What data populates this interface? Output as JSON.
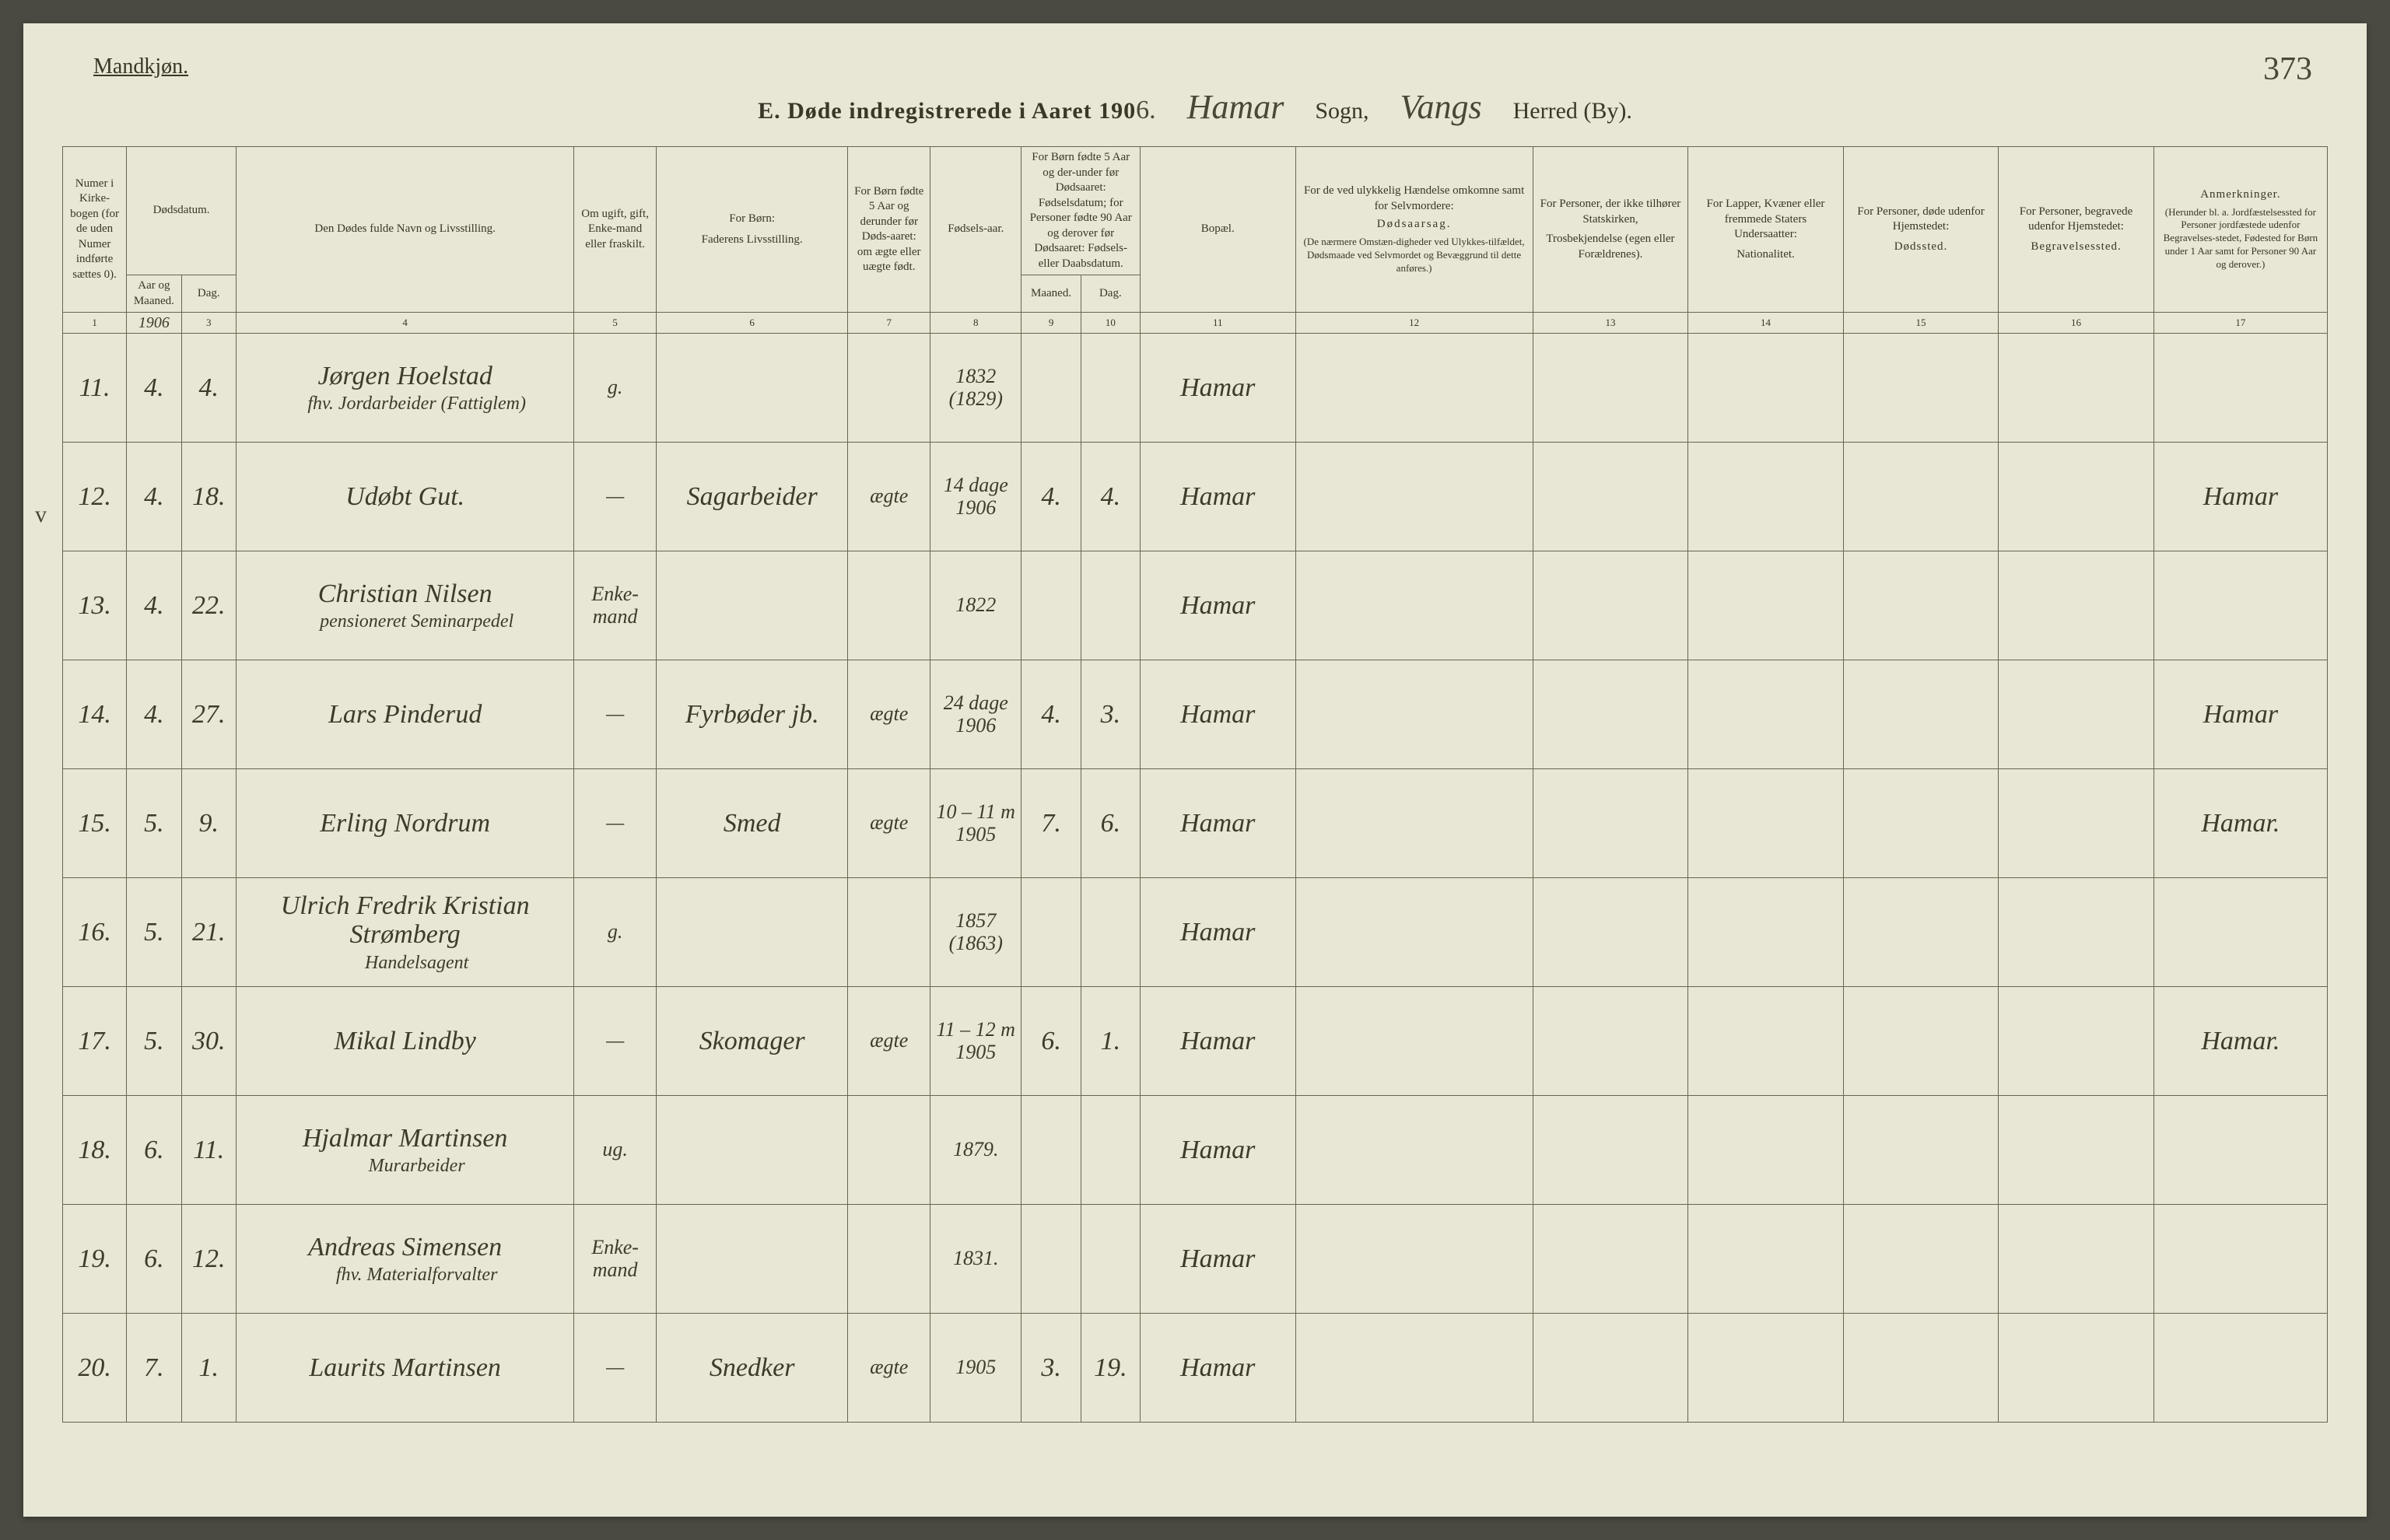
{
  "page_number": "373",
  "gender_label": "Mandkjøn.",
  "title_prefix": "E.  Døde indregistrerede i Aaret 190",
  "year_digit": "6.",
  "sogn_value": "Hamar",
  "sogn_label": "Sogn,",
  "herred_value": "Vangs",
  "herred_label": "Herred (By).",
  "margin_mark": "v",
  "headers": {
    "c1": "Numer i Kirke-bogen (for de uden Numer indførte sættes 0).",
    "c2_top": "Dødsdatum.",
    "c2": "Aar og Maaned.",
    "c3": "Dag.",
    "c4": "Den Dødes fulde Navn og Livsstilling.",
    "c5": "Om ugift, gift, Enke-mand eller fraskilt.",
    "c6_top": "For Børn:",
    "c6": "Faderens Livsstilling.",
    "c7": "For Børn fødte 5 Aar og derunder før Døds-aaret: om ægte eller uægte født.",
    "c8": "Fødsels-aar.",
    "c9_10_top": "For Børn fødte 5 Aar og der-under før Dødsaaret: Fødselsdatum; for Personer fødte 90 Aar og derover før Dødsaaret: Fødsels- eller Daabsdatum.",
    "c9": "Maaned.",
    "c10": "Dag.",
    "c11": "Bopæl.",
    "c12_top": "For de ved ulykkelig Hændelse omkomne samt for Selvmordere:",
    "c12_mid": "Dødsaarsag.",
    "c12_bot": "(De nærmere Omstæn-digheder ved Ulykkes-tilfældet, Dødsmaade ved Selvmordet og Bevæggrund til dette anføres.)",
    "c13_top": "For Personer, der ikke tilhører Statskirken,",
    "c13_bot": "Trosbekjendelse (egen eller Forældrenes).",
    "c14_top": "For Lapper, Kvæner eller fremmede Staters Undersaatter:",
    "c14_bot": "Nationalitet.",
    "c15_top": "For Personer, døde udenfor Hjemstedet:",
    "c15_bot": "Dødssted.",
    "c16_top": "For Personer, begravede udenfor Hjemstedet:",
    "c16_bot": "Begravelsessted.",
    "c17_top": "Anmerkninger.",
    "c17_bot": "(Herunder bl. a. Jordfæstelsessted for Personer jordfæstede udenfor Begravelses-stedet, Fødested for Børn under 1 Aar samt for Personer 90 Aar og derover.)"
  },
  "col_numbers": [
    "1",
    "2",
    "3",
    "4",
    "5",
    "6",
    "7",
    "8",
    "9",
    "10",
    "11",
    "12",
    "13",
    "14",
    "15",
    "16",
    "17"
  ],
  "year_cell": "1906",
  "rows": [
    {
      "num": "11.",
      "mnd": "4.",
      "dag": "4.",
      "name": "Jørgen Hoelstad",
      "name_sub": "fhv. Jordarbeider (Fattiglem)",
      "status": "g.",
      "father": "",
      "legit": "",
      "birth_top": "1832",
      "birth_bot": "(1829)",
      "bm": "",
      "bd": "",
      "place": "Hamar",
      "c12": "",
      "c13": "",
      "c14": "",
      "c15": "",
      "c16": "",
      "c17": ""
    },
    {
      "num": "12.",
      "mnd": "4.",
      "dag": "18.",
      "name": "Udøbt Gut.",
      "name_sub": "",
      "status": "—",
      "father": "Sagarbeider",
      "legit": "ægte",
      "birth_top": "14 dage",
      "birth_bot": "1906",
      "bm": "4.",
      "bd": "4.",
      "place": "Hamar",
      "c12": "",
      "c13": "",
      "c14": "",
      "c15": "",
      "c16": "",
      "c17": "Hamar"
    },
    {
      "num": "13.",
      "mnd": "4.",
      "dag": "22.",
      "name": "Christian Nilsen",
      "name_sub": "pensioneret Seminarpedel",
      "status": "Enke-mand",
      "father": "",
      "legit": "",
      "birth_top": "1822",
      "birth_bot": "",
      "bm": "",
      "bd": "",
      "place": "Hamar",
      "c12": "",
      "c13": "",
      "c14": "",
      "c15": "",
      "c16": "",
      "c17": ""
    },
    {
      "num": "14.",
      "mnd": "4.",
      "dag": "27.",
      "name": "Lars Pinderud",
      "name_sub": "",
      "status": "—",
      "father": "Fyrbøder jb.",
      "legit": "ægte",
      "birth_top": "24 dage",
      "birth_bot": "1906",
      "bm": "4.",
      "bd": "3.",
      "place": "Hamar",
      "c12": "",
      "c13": "",
      "c14": "",
      "c15": "",
      "c16": "",
      "c17": "Hamar"
    },
    {
      "num": "15.",
      "mnd": "5.",
      "dag": "9.",
      "name": "Erling Nordrum",
      "name_sub": "",
      "status": "—",
      "father": "Smed",
      "legit": "ægte",
      "birth_top": "10 – 11 m",
      "birth_bot": "1905",
      "bm": "7.",
      "bd": "6.",
      "place": "Hamar",
      "c12": "",
      "c13": "",
      "c14": "",
      "c15": "",
      "c16": "",
      "c17": "Hamar."
    },
    {
      "num": "16.",
      "mnd": "5.",
      "dag": "21.",
      "name": "Ulrich Fredrik Kristian Strømberg",
      "name_sub": "Handelsagent",
      "status": "g.",
      "father": "",
      "legit": "",
      "birth_top": "1857",
      "birth_bot": "(1863)",
      "bm": "",
      "bd": "",
      "place": "Hamar",
      "c12": "",
      "c13": "",
      "c14": "",
      "c15": "",
      "c16": "",
      "c17": ""
    },
    {
      "num": "17.",
      "mnd": "5.",
      "dag": "30.",
      "name": "Mikal Lindby",
      "name_sub": "",
      "status": "—",
      "father": "Skomager",
      "legit": "ægte",
      "birth_top": "11 – 12 m",
      "birth_bot": "1905",
      "bm": "6.",
      "bd": "1.",
      "place": "Hamar",
      "c12": "",
      "c13": "",
      "c14": "",
      "c15": "",
      "c16": "",
      "c17": "Hamar."
    },
    {
      "num": "18.",
      "mnd": "6.",
      "dag": "11.",
      "name": "Hjalmar Martinsen",
      "name_sub": "Murarbeider",
      "status": "ug.",
      "father": "",
      "legit": "",
      "birth_top": "1879.",
      "birth_bot": "",
      "bm": "",
      "bd": "",
      "place": "Hamar",
      "c12": "",
      "c13": "",
      "c14": "",
      "c15": "",
      "c16": "",
      "c17": ""
    },
    {
      "num": "19.",
      "mnd": "6.",
      "dag": "12.",
      "name": "Andreas Simensen",
      "name_sub": "fhv. Materialforvalter",
      "status": "Enke-mand",
      "father": "",
      "legit": "",
      "birth_top": "1831.",
      "birth_bot": "",
      "bm": "",
      "bd": "",
      "place": "Hamar",
      "c12": "",
      "c13": "",
      "c14": "",
      "c15": "",
      "c16": "",
      "c17": ""
    },
    {
      "num": "20.",
      "mnd": "7.",
      "dag": "1.",
      "name": "Laurits Martinsen",
      "name_sub": "",
      "status": "—",
      "father": "Snedker",
      "legit": "ægte",
      "birth_top": "",
      "birth_bot": "1905",
      "bm": "3.",
      "bd": "19.",
      "place": "Hamar",
      "c12": "",
      "c13": "",
      "c14": "",
      "c15": "",
      "c16": "",
      "c17": ""
    }
  ]
}
